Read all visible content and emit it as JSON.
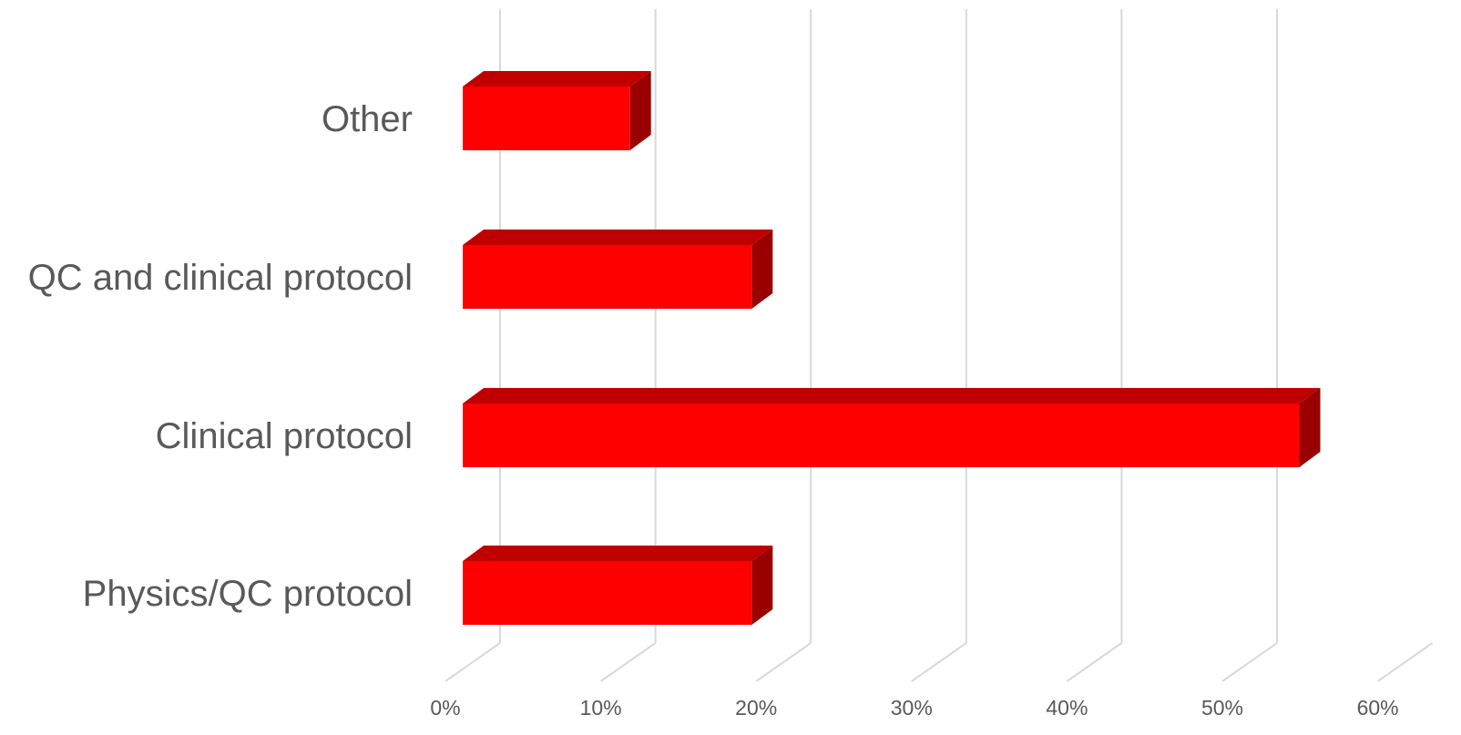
{
  "chart_data": {
    "type": "bar",
    "orientation": "horizontal",
    "style": "3d",
    "categories": [
      "Other",
      "QC and clinical protocol",
      "Clinical protocol",
      "Physics/QC protocol"
    ],
    "values": [
      11,
      19,
      55,
      19
    ],
    "value_unit": "%",
    "xlim": [
      0,
      60
    ],
    "x_ticks": [
      "0%",
      "10%",
      "20%",
      "30%",
      "40%",
      "50%",
      "60%"
    ],
    "grid": true,
    "legend": "none",
    "title": "",
    "xlabel": "",
    "ylabel": "",
    "colors": {
      "bar_front": "#ff0000",
      "bar_top": "#c00000",
      "bar_side": "#9a0000",
      "grid": "#d9d9d9",
      "text": "#595959"
    }
  }
}
